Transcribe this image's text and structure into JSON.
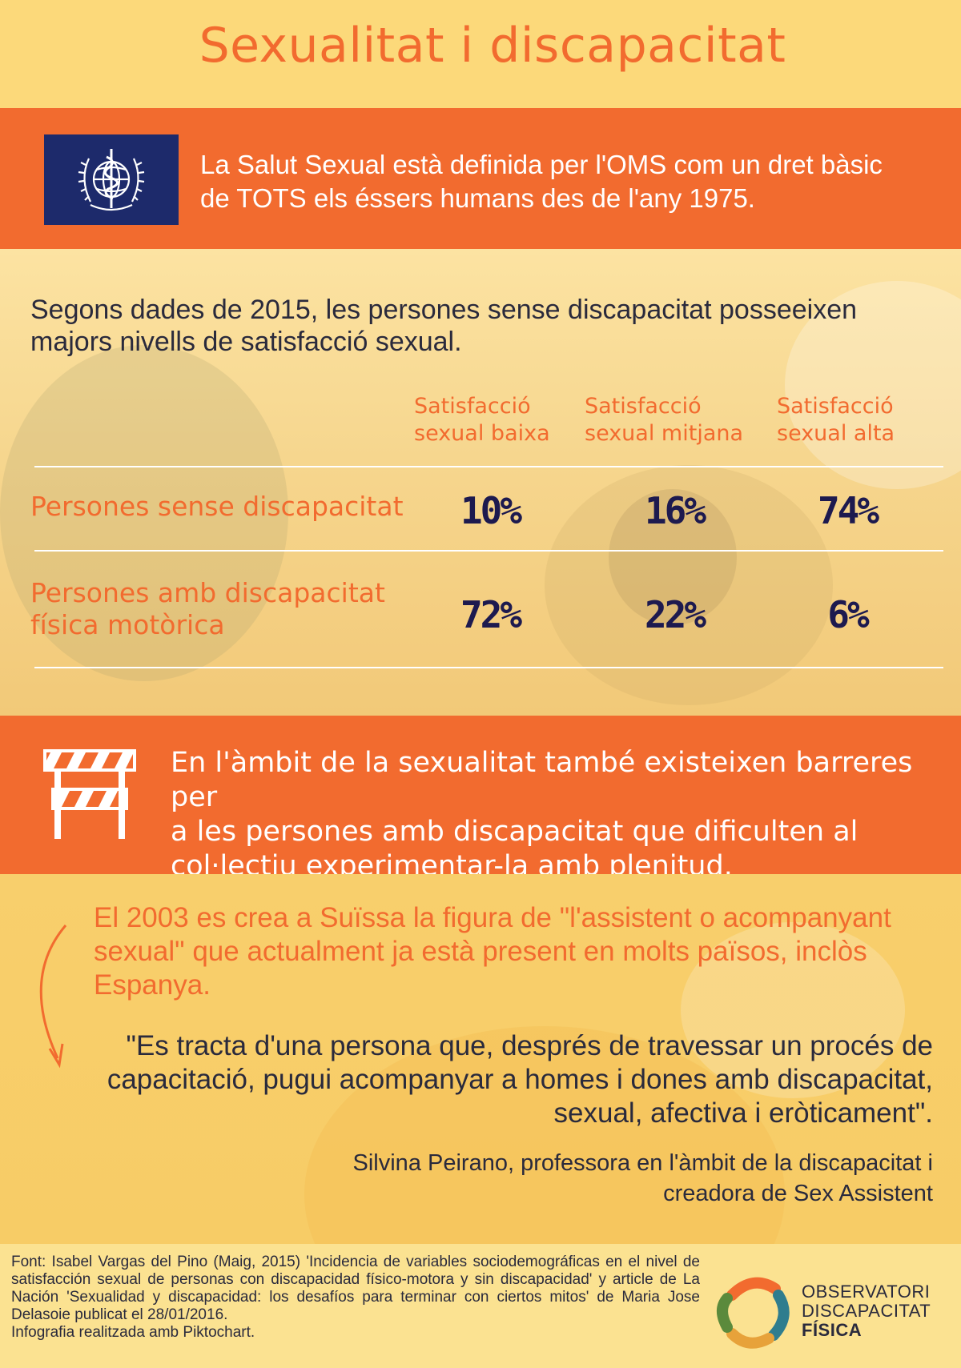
{
  "title": "Sexualitat i discapacitat",
  "oms": {
    "icon": "who-flag-icon",
    "text_lines": [
      "La Salut Sexual està definida per l'OMS com un dret bàsic",
      "de TOTS els éssers humans des de l'any 1975."
    ]
  },
  "intro": {
    "lines": [
      "Segons dades de 2015, les persones sense discapacitat posseeixen",
      "majors nivells de satisfacció sexual."
    ]
  },
  "table": {
    "columns": [
      {
        "line1": "Satisfacció",
        "line2": "sexual baixa"
      },
      {
        "line1": "Satisfacció",
        "line2": "sexual mitjana"
      },
      {
        "line1": "Satisfacció",
        "line2": "sexual alta"
      }
    ],
    "rows": [
      {
        "label_line1": "Persones sense discapacitat",
        "label_line2": "",
        "values": [
          "10%",
          "16%",
          "74%"
        ]
      },
      {
        "label_line1": "Persones amb discapacitat",
        "label_line2": "física motòrica",
        "values": [
          "72%",
          "22%",
          "6%"
        ]
      }
    ]
  },
  "barrier": {
    "icon": "barrier-icon",
    "lines": [
      "En l'àmbit de la sexualitat també existeixen barreres per",
      "a les persones amb discapacitat que dificulten al",
      "col·lectiu experimentar-la amb plenitud."
    ]
  },
  "assistant": {
    "icon": "curved-arrow-icon",
    "lines": [
      "El 2003 es crea a Suïssa la figura de \"l'assistent o acompanyant",
      "sexual\" que actualment ja està present en molts països, inclòs",
      "Espanya."
    ]
  },
  "quote": {
    "lines": [
      "\"Es tracta d'una persona que, després de travessar un procés de",
      "capacitació, pugui acompanyar a homes i dones amb discapacitat,",
      "sexual, afectiva i eròticament\"."
    ],
    "credit_lines": [
      "Silvina Peirano, professora en l'àmbit de la discapacitat i",
      "creadora de Sex Assistent"
    ]
  },
  "footer": {
    "source": "Font: Isabel Vargas del Pino (Maig, 2015) 'Incidencia de variables sociodemográficas en el nivel de satisfacción sexual de personas con discapacidad físico-motora y sin discapacidad' y article de La Nación 'Sexualidad y discapacidad: los desafíos para terminar con ciertos mitos' de Maria Jose Delasoie publicat el 28/01/2016.",
    "note": "Infografia realitzada amb Piktochart.",
    "logo": {
      "icon": "observatori-logo-icon",
      "line1": "OBSERVATORI",
      "line2": "DISCAPACITAT",
      "line3": "FÍSICA"
    }
  },
  "colors": {
    "accent": "#f26b2f",
    "background": "#fad97c",
    "dark_text": "#1d1a4f",
    "who_blue": "#1d2a6b"
  }
}
